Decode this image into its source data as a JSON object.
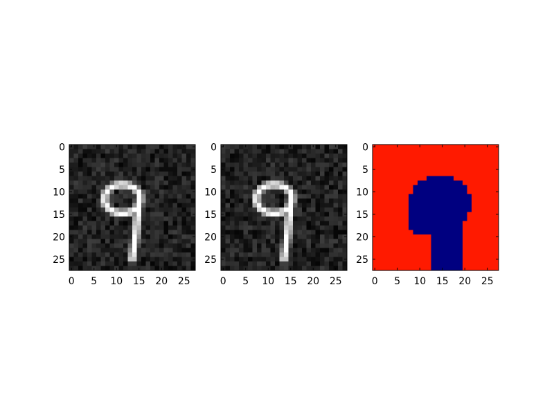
{
  "chart_data": [
    {
      "type": "heatmap",
      "panel": "noisy-input",
      "colormap": "gray",
      "image_shape": [
        28,
        28
      ],
      "content": "handwritten digit 9 on noisy dark background",
      "xlim": [
        -0.5,
        27.5
      ],
      "ylim": [
        27.5,
        -0.5
      ],
      "xticks": [
        0,
        5,
        10,
        15,
        20,
        25
      ],
      "yticks": [
        0,
        5,
        10,
        15,
        20,
        25
      ],
      "grid": false,
      "title": "",
      "xlabel": "",
      "ylabel": ""
    },
    {
      "type": "heatmap",
      "panel": "reconstruction",
      "colormap": "gray",
      "image_shape": [
        28,
        28
      ],
      "content": "handwritten digit 9 on noisy dark background",
      "xlim": [
        -0.5,
        27.5
      ],
      "ylim": [
        27.5,
        -0.5
      ],
      "xticks": [
        0,
        5,
        10,
        15,
        20,
        25
      ],
      "yticks": [
        0,
        5,
        10,
        15,
        20,
        25
      ],
      "grid": false,
      "title": "",
      "xlabel": "",
      "ylabel": ""
    },
    {
      "type": "heatmap",
      "panel": "mask",
      "colormap": "jet",
      "image_shape": [
        28,
        28
      ],
      "content": "dark blue blob over a red background",
      "xlim": [
        -0.5,
        27.5
      ],
      "ylim": [
        27.5,
        -0.5
      ],
      "xticks": [
        0,
        5,
        10,
        15,
        20,
        25
      ],
      "yticks": [
        0,
        5,
        10,
        15,
        20,
        25
      ],
      "grid": false,
      "title": "",
      "xlabel": "",
      "ylabel": ""
    }
  ],
  "colors": {
    "mask_background": "#ff1a00",
    "mask_blob": "#000080",
    "digit": "#ffffff",
    "image_background": "#1a1a1a"
  }
}
